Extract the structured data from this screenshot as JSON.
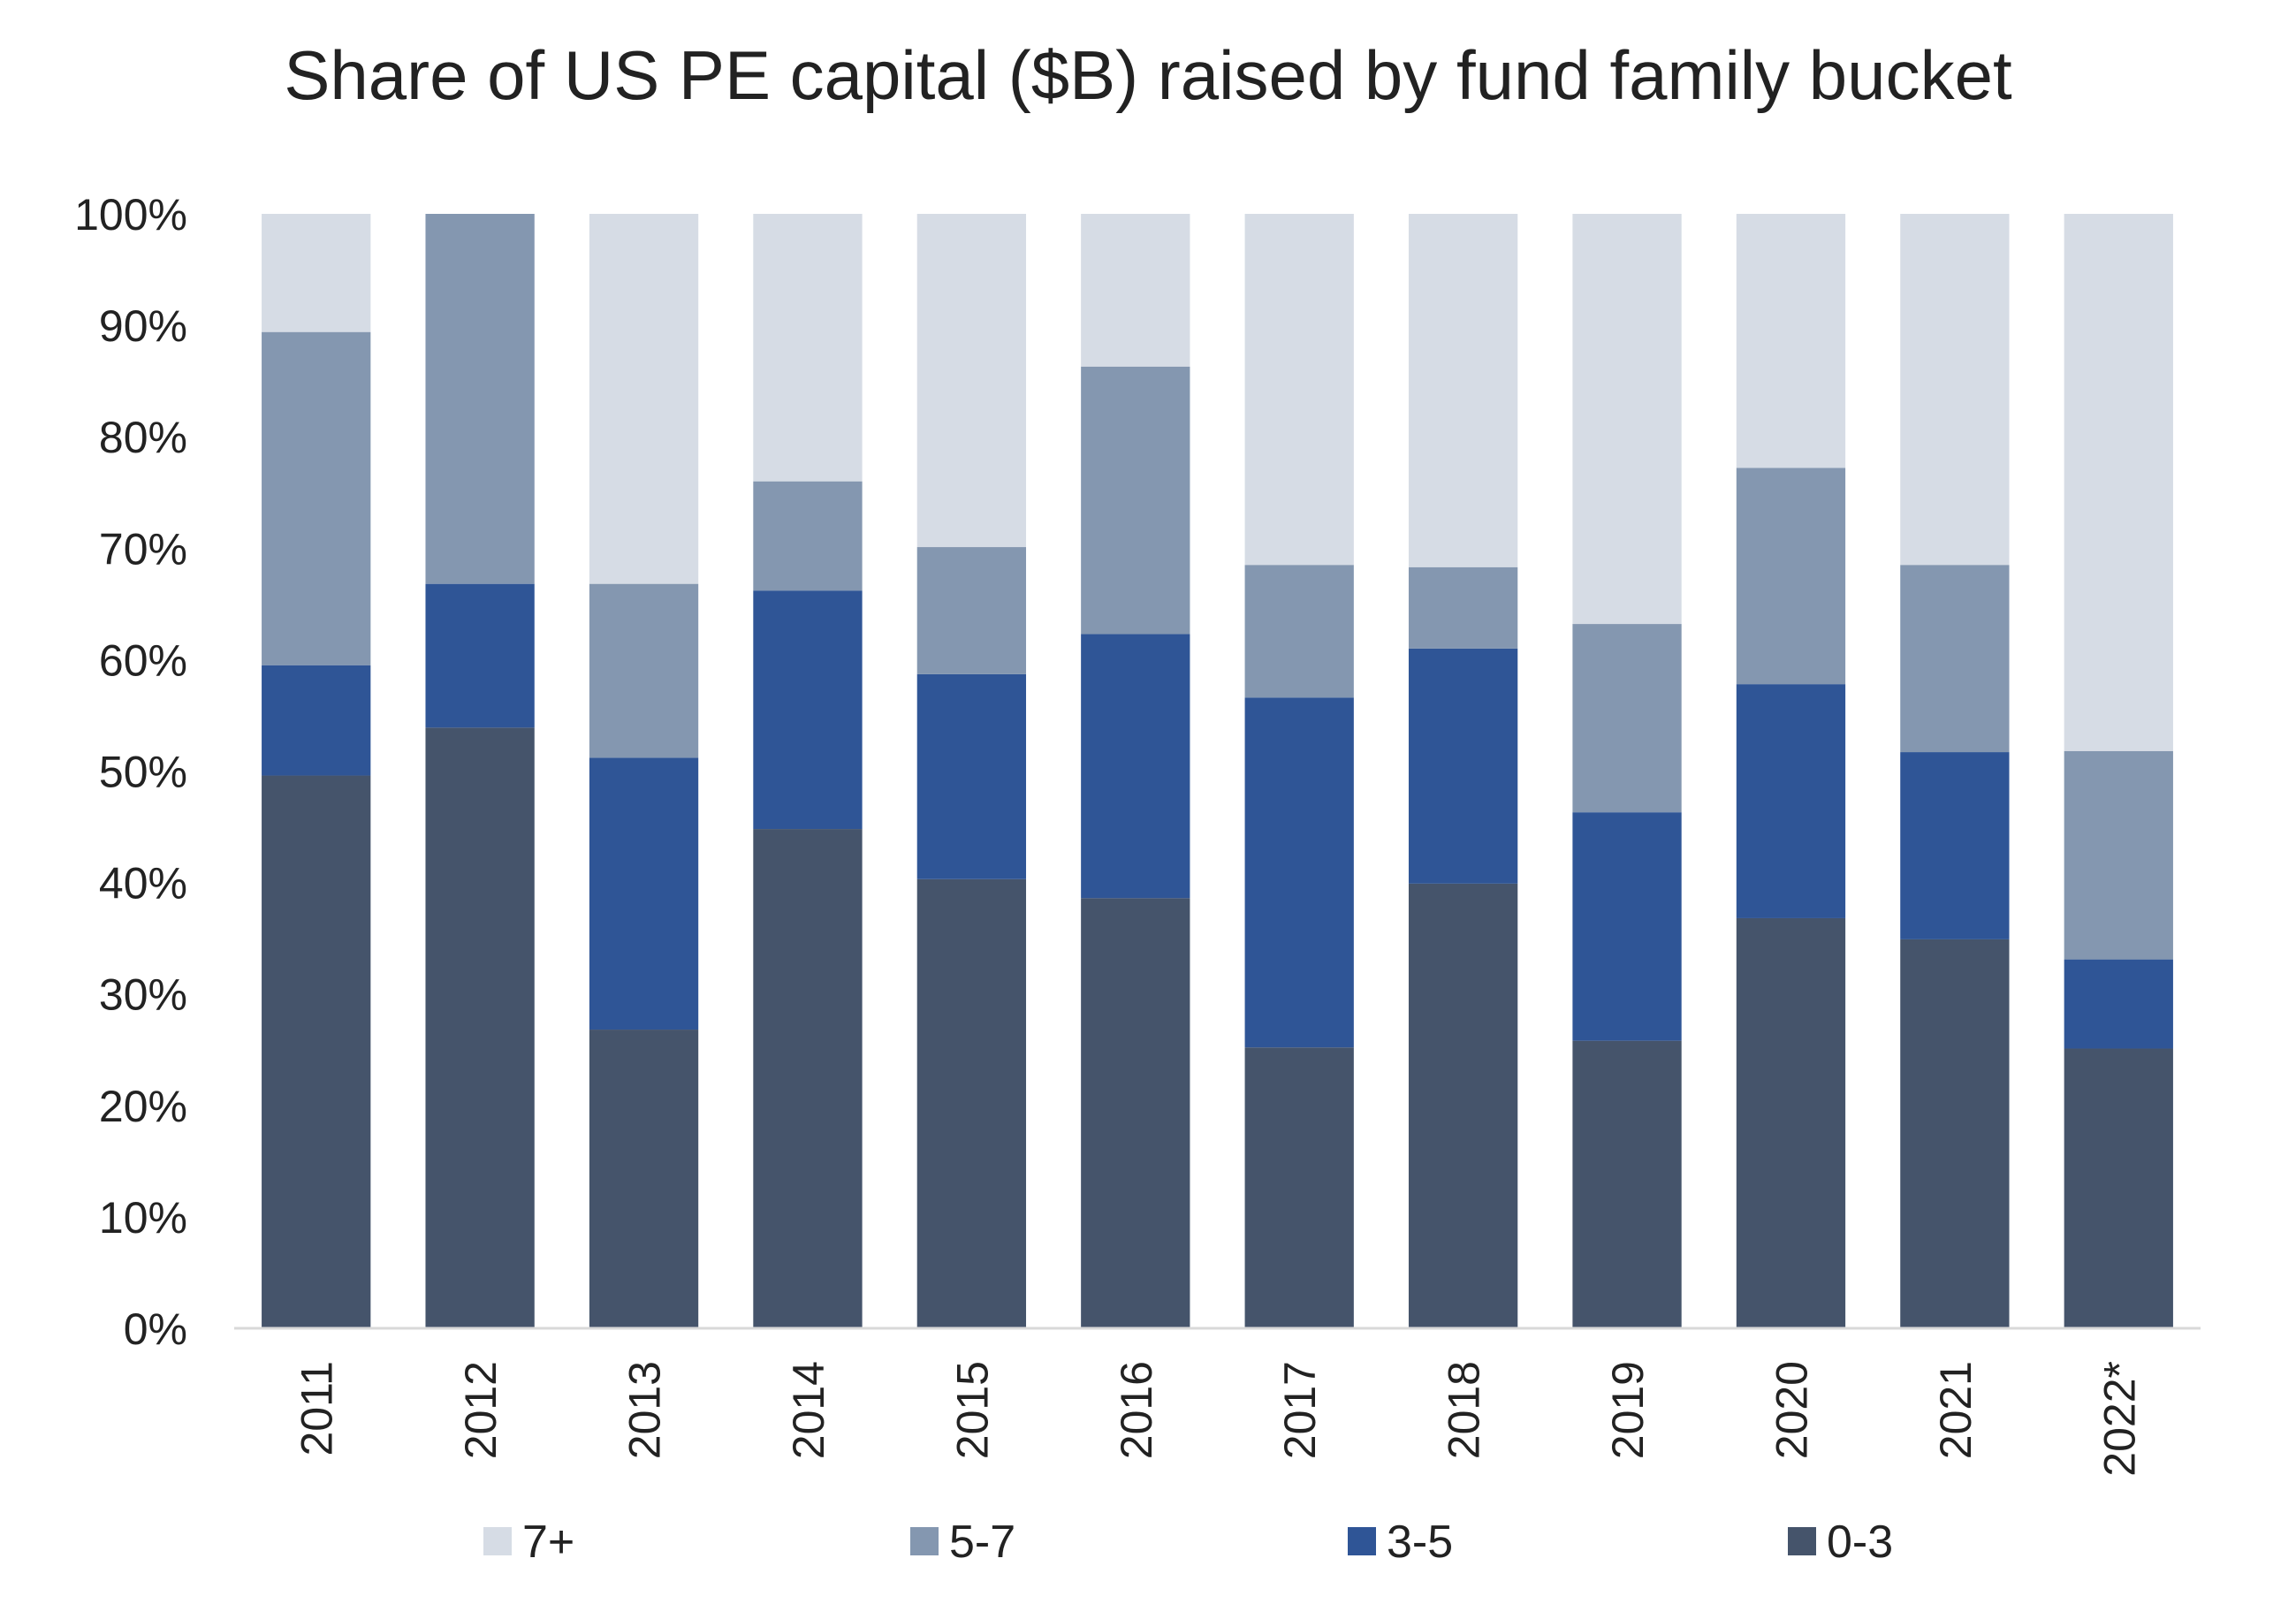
{
  "chart_data": {
    "type": "bar",
    "stacked": true,
    "title": "Share of US PE capital ($B) raised by fund family bucket",
    "xlabel": "",
    "ylabel": "",
    "ylim": [
      0,
      100
    ],
    "y_ticks": [
      "0%",
      "10%",
      "20%",
      "30%",
      "40%",
      "50%",
      "60%",
      "70%",
      "80%",
      "90%",
      "100%"
    ],
    "grid": false,
    "legend_position": "bottom",
    "categories": [
      "2011",
      "2012",
      "2013",
      "2014",
      "2015",
      "2016",
      "2017",
      "2018",
      "2019",
      "2020",
      "2021",
      "2022*"
    ],
    "series": [
      {
        "name": "0-3",
        "color": "#45546b",
        "values": [
          49.6,
          53.9,
          26.8,
          44.8,
          40.3,
          38.6,
          25.2,
          39.9,
          25.8,
          36.8,
          34.9,
          25.1
        ]
      },
      {
        "name": "3-5",
        "color": "#2f5596",
        "values": [
          9.9,
          12.9,
          24.4,
          21.4,
          18.4,
          23.7,
          31.4,
          21.1,
          20.5,
          21.0,
          16.8,
          8.0
        ]
      },
      {
        "name": "5-7",
        "color": "#8497b0",
        "values": [
          29.9,
          33.2,
          15.6,
          9.8,
          11.4,
          24.0,
          11.9,
          7.3,
          16.9,
          19.4,
          16.8,
          18.7
        ]
      },
      {
        "name": "7+",
        "color": "#d6dce5",
        "values": [
          10.6,
          0.0,
          33.2,
          24.0,
          29.9,
          13.7,
          31.5,
          31.7,
          36.8,
          22.8,
          31.5,
          48.2
        ]
      }
    ],
    "legend_order": [
      "7+",
      "5-7",
      "3-5",
      "0-3"
    ]
  }
}
